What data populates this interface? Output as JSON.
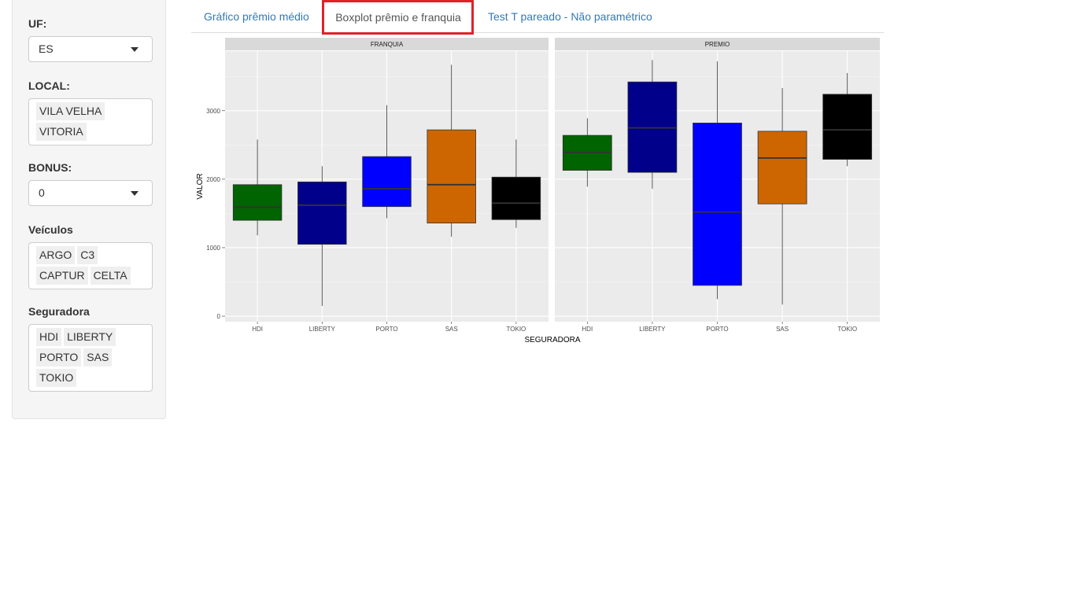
{
  "sidebar": {
    "uf": {
      "label": "UF:",
      "value": "ES"
    },
    "local": {
      "label": "LOCAL:",
      "tags": [
        "VILA VELHA",
        "VITORIA"
      ]
    },
    "bonus": {
      "label": "BONUS:",
      "value": "0"
    },
    "veiculos": {
      "label": "Veículos",
      "tags": [
        "ARGO",
        "C3",
        "CAPTUR",
        "CELTA"
      ]
    },
    "seguradora": {
      "label": "Seguradora",
      "tags": [
        "HDI",
        "LIBERTY",
        "PORTO",
        "SAS",
        "TOKIO"
      ]
    }
  },
  "tabs": [
    {
      "label": "Gráfico prêmio médio",
      "active": false
    },
    {
      "label": "Boxplot prêmio e franquia",
      "active": true
    },
    {
      "label": "Test T pareado - Não paramétrico",
      "active": false
    }
  ],
  "chart_data": {
    "type": "boxplot",
    "xlabel": "SEGURADORA",
    "ylabel": "VALOR",
    "ylim": [
      -80,
      3870
    ],
    "yticks": [
      0,
      1000,
      2000,
      3000
    ],
    "categories": [
      "HDI",
      "LIBERTY",
      "PORTO",
      "SAS",
      "TOKIO"
    ],
    "colors": [
      "#006400",
      "#00008b",
      "#0000ff",
      "#cd6600",
      "#000000"
    ],
    "grid": true,
    "panel_background": "#ebebeb",
    "facets": [
      {
        "name": "FRANQUIA",
        "boxes": [
          {
            "category": "HDI",
            "min": 1180,
            "q1": 1400,
            "median": 1590,
            "q3": 1920,
            "max": 2580
          },
          {
            "category": "LIBERTY",
            "min": 150,
            "q1": 1050,
            "median": 1620,
            "q3": 1960,
            "max": 2190
          },
          {
            "category": "PORTO",
            "min": 1430,
            "q1": 1600,
            "median": 1860,
            "q3": 2330,
            "max": 3080
          },
          {
            "category": "SAS",
            "min": 1160,
            "q1": 1360,
            "median": 1920,
            "q3": 2720,
            "max": 3670
          },
          {
            "category": "TOKIO",
            "min": 1290,
            "q1": 1410,
            "median": 1650,
            "q3": 2030,
            "max": 2580
          }
        ]
      },
      {
        "name": "PREMIO",
        "boxes": [
          {
            "category": "HDI",
            "min": 1890,
            "q1": 2130,
            "median": 2390,
            "q3": 2640,
            "max": 2890
          },
          {
            "category": "LIBERTY",
            "min": 1860,
            "q1": 2100,
            "median": 2750,
            "q3": 3420,
            "max": 3740
          },
          {
            "category": "PORTO",
            "min": 250,
            "q1": 450,
            "median": 1520,
            "q3": 2820,
            "max": 3720
          },
          {
            "category": "SAS",
            "min": 170,
            "q1": 1640,
            "median": 2310,
            "q3": 2700,
            "max": 3330
          },
          {
            "category": "TOKIO",
            "min": 2190,
            "q1": 2290,
            "median": 2720,
            "q3": 3240,
            "max": 3550
          }
        ]
      }
    ]
  }
}
